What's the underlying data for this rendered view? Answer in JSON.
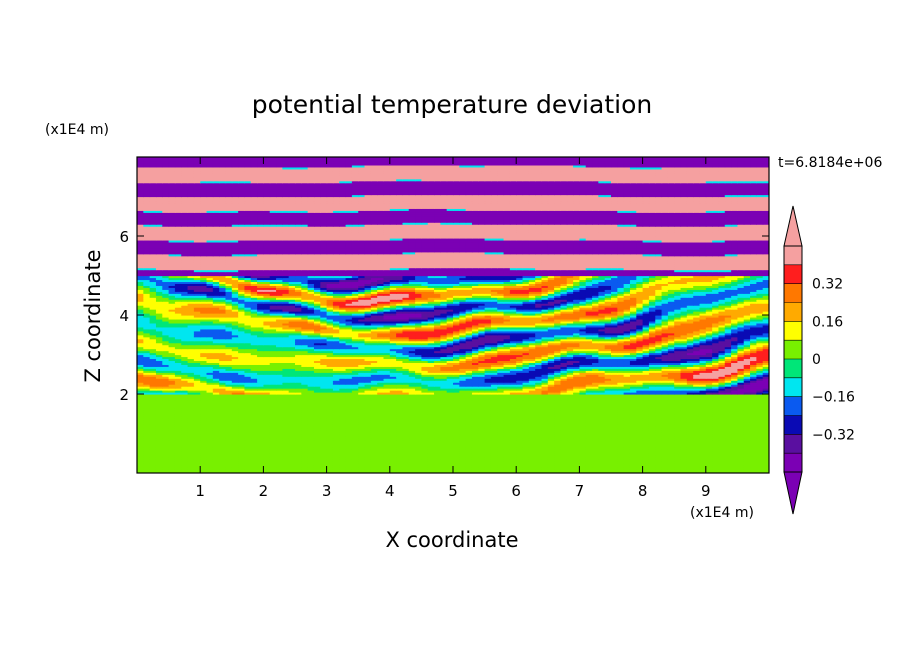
{
  "chart_data": {
    "type": "heatmap",
    "title": "potential temperature deviation",
    "xlabel": "X coordinate",
    "ylabel": "Z coordinate",
    "x_unit": "(x1E4 m)",
    "y_unit": "(x1E4 m)",
    "time_label": "t=6.8184e+06",
    "x_ticks": [
      "1",
      "2",
      "3",
      "4",
      "5",
      "6",
      "7",
      "8",
      "9"
    ],
    "y_ticks": [
      "2",
      "4",
      "6"
    ],
    "xlim": [
      0,
      10
    ],
    "ylim": [
      0,
      8
    ],
    "colorbar": {
      "levels": [
        -0.48,
        -0.4,
        -0.32,
        -0.24,
        -0.16,
        -0.08,
        0,
        0.08,
        0.16,
        0.24,
        0.32,
        0.4,
        0.48
      ],
      "tick_labels": [
        "0.32",
        "0.16",
        "0",
        "−0.16",
        "−0.32"
      ],
      "tick_values": [
        0.32,
        0.16,
        0,
        -0.16,
        -0.32
      ],
      "colors": [
        "#7b00b4",
        "#5a0fa0",
        "#0a0ab4",
        "#0a5af0",
        "#00e6f0",
        "#00e678",
        "#78f000",
        "#ffff00",
        "#ffaa00",
        "#ff7800",
        "#ff1e1e",
        "#f5a0a0"
      ],
      "extend_low_color": "#7b00b4",
      "extend_high_color": "#f5a0a0"
    },
    "field_description_bands": [
      {
        "z_range": [
          0,
          2.0
        ],
        "dominant": [
          0.08,
          0
        ]
      },
      {
        "z_range": [
          2.0,
          5.0
        ],
        "dominant": [
          -0.16,
          0.32
        ]
      },
      {
        "z_range": [
          5.0,
          8.0
        ],
        "dominant": [
          -0.48,
          0.48
        ]
      }
    ]
  }
}
